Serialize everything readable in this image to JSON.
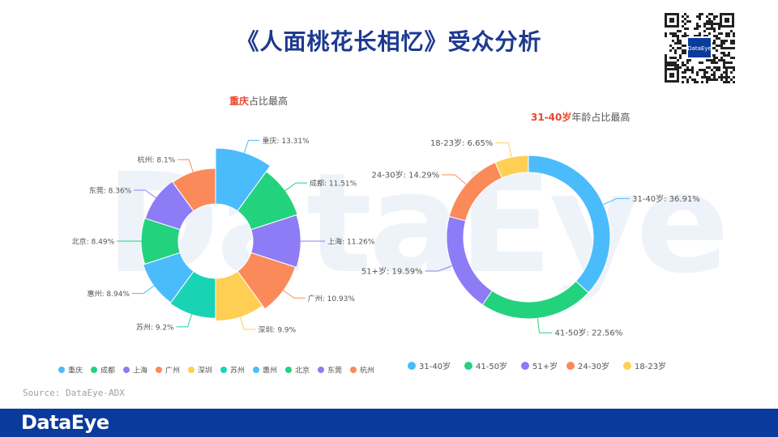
{
  "header": {
    "title": "《人面桃花长相忆》受众分析"
  },
  "watermark": {
    "text": "DataEye"
  },
  "qr": {
    "logo_text": "DataEye"
  },
  "chart_data": [
    {
      "type": "pie",
      "title_highlight": "重庆",
      "title_rest": "占比最高",
      "label_sep": ": ",
      "label_suffix": "%",
      "slices": [
        {
          "name": "重庆",
          "value": 13.31,
          "color": "#4bbcfb"
        },
        {
          "name": "成都",
          "value": 11.51,
          "color": "#23d27d"
        },
        {
          "name": "上海",
          "value": 11.26,
          "color": "#8d7cf5"
        },
        {
          "name": "广州",
          "value": 10.93,
          "color": "#fb8a5a"
        },
        {
          "name": "深圳",
          "value": 9.9,
          "color": "#fecf53"
        },
        {
          "name": "苏州",
          "value": 9.2,
          "color": "#18d4b4"
        },
        {
          "name": "惠州",
          "value": 8.94,
          "color": "#4bbcfb"
        },
        {
          "name": "北京",
          "value": 8.49,
          "color": "#23d27d"
        },
        {
          "name": "东莞",
          "value": 8.36,
          "color": "#8d7cf5"
        },
        {
          "name": "杭州",
          "value": 8.1,
          "color": "#fb8a5a"
        }
      ]
    },
    {
      "type": "pie",
      "title_highlight": "31-40岁",
      "title_rest": "年龄占比最高",
      "label_sep": ":  ",
      "label_suffix": "%",
      "slices": [
        {
          "name": "31-40岁",
          "value": 36.91,
          "color": "#4bbcfb"
        },
        {
          "name": "41-50岁",
          "value": 22.56,
          "color": "#23d27d"
        },
        {
          "name": "51+岁",
          "value": 19.59,
          "color": "#8d7cf5"
        },
        {
          "name": "24-30岁",
          "value": 14.29,
          "color": "#fb8a5a"
        },
        {
          "name": "18-23岁",
          "value": 6.65,
          "color": "#fecf53"
        }
      ]
    }
  ],
  "source": "Source: DataEye-ADX",
  "footer": {
    "logo": "DataEye"
  },
  "colors": {
    "title": "#1d3a8f",
    "highlight": "#e8472d",
    "footer": "#0a3a9c"
  }
}
